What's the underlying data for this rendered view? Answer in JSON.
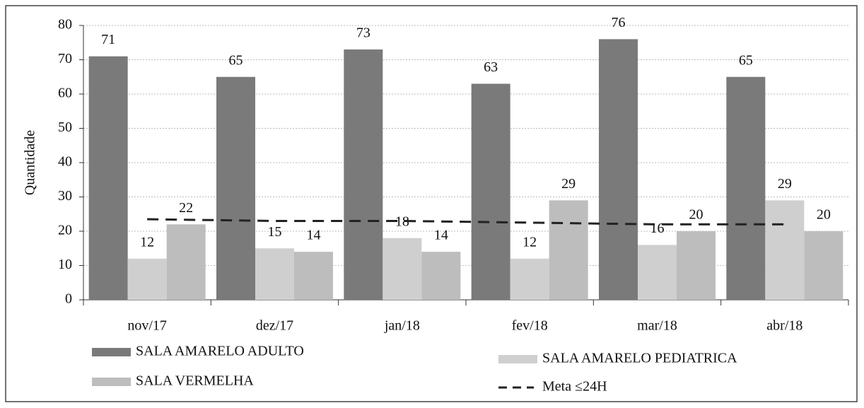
{
  "chart_data": {
    "type": "bar",
    "y_label": "Quantidade",
    "categories": [
      "nov/17",
      "dez/17",
      "jan/18",
      "fev/18",
      "mar/18",
      "abr/18"
    ],
    "series": [
      {
        "name": "SALA AMARELO ADULTO",
        "color": "#7a7a7a",
        "values": [
          71,
          65,
          73,
          63,
          76,
          65
        ]
      },
      {
        "name": "SALA AMARELO PEDIATRICA",
        "color": "#cfcfcf",
        "values": [
          12,
          15,
          18,
          12,
          16,
          29
        ]
      },
      {
        "name": "SALA VERMELHA",
        "color": "#bdbdbd",
        "values": [
          22,
          14,
          14,
          29,
          20,
          20
        ]
      },
      {
        "name": "Meta ≤24H",
        "type": "line",
        "color": "#222",
        "values": [
          23.5,
          23,
          23,
          22.5,
          22,
          22
        ]
      }
    ],
    "ylim": [
      0,
      80
    ],
    "yticks": [
      0,
      10,
      20,
      30,
      40,
      50,
      60,
      70,
      80
    ],
    "grid": true
  }
}
